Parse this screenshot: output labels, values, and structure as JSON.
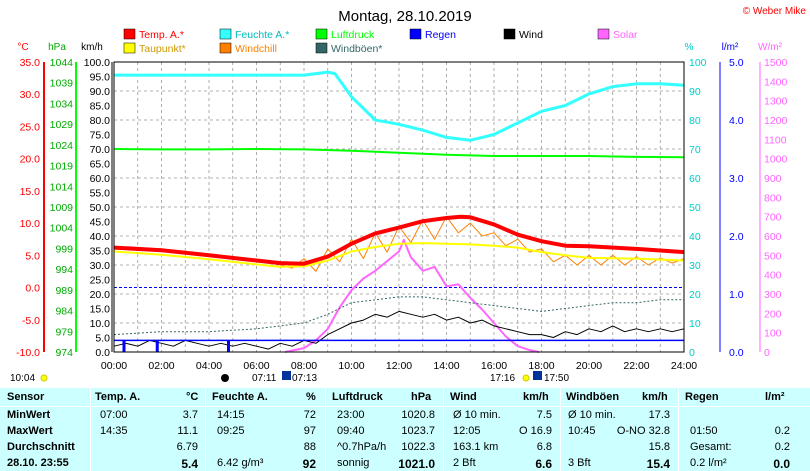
{
  "title": "Montag, 28.10.2019",
  "credit": "© Weber Mike",
  "legend": [
    {
      "label": "Temp. A.*",
      "color": "#ff0000"
    },
    {
      "label": "Feuchte A.*",
      "color": "#33ffff"
    },
    {
      "label": "Luftdruck",
      "color": "#00ff00"
    },
    {
      "label": "Regen",
      "color": "#0000ff"
    },
    {
      "label": "Wind",
      "color": "#000000"
    },
    {
      "label": "Solar",
      "color": "#ff66ff"
    },
    {
      "label": "Taupunkt*",
      "color": "#ffff00"
    },
    {
      "label": "Windchill",
      "color": "#ff8000"
    },
    {
      "label": "Windböen*",
      "color": "#336666"
    }
  ],
  "axis_units": {
    "temp": "°C",
    "press": "hPa",
    "wind": "km/h",
    "hum": "%",
    "rain": "l/m²",
    "solar": "W/m²"
  },
  "events": {
    "left_time": "10:04",
    "sunrise_a": "07:11",
    "sunrise_b": "07:13",
    "sunset_a": "17:16",
    "sunset_b": "17:50"
  },
  "chart_data": {
    "type": "line",
    "x_unit": "hours",
    "x_ticks": [
      "00:00",
      "02:00",
      "04:00",
      "06:00",
      "08:00",
      "10:00",
      "12:00",
      "14:00",
      "16:00",
      "18:00",
      "20:00",
      "22:00",
      "24:00"
    ],
    "axes": {
      "temp": {
        "min": -10,
        "max": 35,
        "ticks": [
          "35.0",
          "30.0",
          "25.0",
          "20.0",
          "15.0",
          "10.0",
          "5.0",
          "0.0",
          "-5.0",
          "-10.0"
        ]
      },
      "press": {
        "min": 974,
        "max": 1044,
        "ticks": [
          "1044",
          "1039",
          "1034",
          "1029",
          "1024",
          "1019",
          "1014",
          "1009",
          "1004",
          "999",
          "994",
          "989",
          "984",
          "979",
          "974"
        ]
      },
      "wind": {
        "min": 0,
        "max": 100,
        "ticks": [
          "100.0",
          "95.0",
          "90.0",
          "85.0",
          "80.0",
          "75.0",
          "70.0",
          "65.0",
          "60.0",
          "55.0",
          "50.0",
          "45.0",
          "40.0",
          "35.0",
          "30.0",
          "25.0",
          "20.0",
          "15.0",
          "10.0",
          "5.0",
          "0.0"
        ]
      },
      "hum": {
        "min": 0,
        "max": 100,
        "ticks": [
          "100",
          "90",
          "80",
          "70",
          "60",
          "50",
          "40",
          "30",
          "20",
          "10",
          "0"
        ]
      },
      "rain": {
        "min": 0,
        "max": 5,
        "ticks": [
          "5.0",
          "4.0",
          "3.0",
          "2.0",
          "1.0",
          "0.0"
        ]
      },
      "solar": {
        "min": 0,
        "max": 1500,
        "ticks": [
          "1500",
          "1400",
          "1300",
          "1200",
          "1100",
          "1000",
          "900",
          "800",
          "700",
          "600",
          "500",
          "400",
          "300",
          "200",
          "100",
          "0"
        ]
      }
    },
    "series": [
      {
        "name": "Temp. A.*",
        "axis": "temp",
        "color": "#ff0000",
        "width": 4,
        "x": [
          0,
          2,
          4,
          6,
          7,
          8,
          9,
          10,
          11,
          12,
          13,
          14,
          14.6,
          15,
          16,
          17,
          18,
          19,
          20,
          22,
          24
        ],
        "y": [
          6.2,
          5.8,
          5.0,
          4.2,
          3.8,
          3.7,
          4.8,
          6.8,
          8.4,
          9.3,
          10.3,
          10.8,
          11.0,
          10.9,
          9.8,
          8.2,
          7.2,
          6.5,
          6.4,
          6.0,
          5.5
        ]
      },
      {
        "name": "Taupunkt*",
        "axis": "temp",
        "color": "#ffff00",
        "width": 2,
        "x": [
          0,
          2,
          4,
          6,
          7,
          8,
          9,
          10,
          11,
          12,
          13,
          14,
          15,
          16,
          17,
          18,
          19,
          20,
          22,
          24
        ],
        "y": [
          5.6,
          5.1,
          4.4,
          3.6,
          3.2,
          3.3,
          4.2,
          5.6,
          6.3,
          6.8,
          6.9,
          6.8,
          6.7,
          6.5,
          6.2,
          5.5,
          5.0,
          4.6,
          4.5,
          4.2
        ]
      },
      {
        "name": "Feuchte A.*",
        "axis": "hum",
        "color": "#33ffff",
        "width": 3,
        "x": [
          0,
          2,
          4,
          6,
          8,
          9,
          9.3,
          10,
          11,
          12,
          13,
          14,
          15,
          16,
          17,
          18,
          19,
          20,
          21,
          22,
          23,
          24
        ],
        "y": [
          95.5,
          95.5,
          95.5,
          95.5,
          95.5,
          96.5,
          96,
          88,
          80,
          78.5,
          76.5,
          74,
          73,
          75,
          79,
          83,
          85,
          89,
          91.5,
          92.5,
          92.5,
          92
        ]
      },
      {
        "name": "Luftdruck",
        "axis": "press",
        "color": "#00ff00",
        "width": 2,
        "x": [
          0,
          2,
          4,
          6,
          8,
          10,
          12,
          14,
          16,
          18,
          20,
          22,
          24
        ],
        "y": [
          1023.0,
          1022.9,
          1022.9,
          1023.0,
          1022.9,
          1022.6,
          1022.1,
          1021.6,
          1021.3,
          1021.3,
          1021.3,
          1021.1,
          1021.0
        ]
      },
      {
        "name": "Regen",
        "axis": "rain",
        "color": "#0000ff",
        "width": 1.5,
        "x": [
          0,
          24
        ],
        "y": [
          0.2,
          0.2
        ]
      },
      {
        "name": "Windböen*",
        "axis": "wind",
        "color": "#336666",
        "width": 1,
        "dash": "2,2",
        "x": [
          0,
          2,
          4,
          6,
          8,
          9,
          10,
          11,
          12,
          13,
          14,
          15,
          16,
          17,
          18,
          19,
          20,
          21,
          22,
          23,
          24
        ],
        "y": [
          6,
          7,
          7,
          8,
          10,
          13,
          17,
          18,
          19,
          19,
          18,
          17,
          16,
          15,
          14,
          15,
          16,
          17,
          17,
          18,
          18
        ]
      },
      {
        "name": "Windchill",
        "axis": "temp",
        "color": "#ff8000",
        "width": 1,
        "x": [
          7,
          7.5,
          8,
          8.5,
          9,
          9.5,
          10,
          10.5,
          11,
          11.5,
          12,
          12.5,
          13,
          13.5,
          14,
          14.5,
          15,
          15.5,
          16,
          16.5,
          17,
          17.5,
          18,
          18.5,
          19,
          19.5,
          20,
          20.5,
          21,
          21.5,
          22,
          22.5,
          23,
          23.5,
          24
        ],
        "y": [
          3.5,
          3.0,
          4.5,
          2.5,
          6.0,
          4.0,
          7.5,
          4.5,
          8.5,
          5.5,
          9.5,
          7.0,
          10.5,
          7.5,
          11.0,
          8.5,
          10.0,
          8.0,
          8.5,
          6.5,
          7.5,
          5.5,
          6.0,
          4.0,
          5.0,
          3.5,
          5.0,
          3.5,
          5.0,
          3.5,
          4.8,
          3.5,
          4.6,
          3.8,
          4.5
        ]
      },
      {
        "name": "Wind",
        "axis": "wind",
        "color": "#000000",
        "width": 1,
        "x": [
          0,
          0.5,
          1,
          1.5,
          2,
          2.5,
          3,
          3.5,
          4,
          4.5,
          5,
          5.5,
          6,
          6.5,
          7,
          7.5,
          8,
          8.5,
          9,
          9.5,
          10,
          10.5,
          11,
          11.5,
          12,
          12.5,
          13,
          13.5,
          14,
          14.5,
          15,
          15.5,
          16,
          16.5,
          17,
          17.5,
          18,
          18.5,
          19,
          19.5,
          20,
          20.5,
          21,
          21.5,
          22,
          22.5,
          23,
          23.5,
          24
        ],
        "y": [
          2,
          3,
          2,
          4,
          3,
          2,
          4,
          3,
          2,
          3,
          2,
          3,
          2,
          1,
          3,
          2,
          4,
          3,
          6,
          8,
          10,
          11,
          13,
          12,
          14,
          13,
          12,
          13,
          11,
          12,
          10,
          11,
          9,
          8,
          7,
          6,
          6,
          5,
          7,
          6,
          8,
          7,
          9,
          7,
          8,
          7,
          8,
          7,
          8
        ]
      },
      {
        "name": "Solar",
        "axis": "solar",
        "color": "#ff66ff",
        "width": 2,
        "x": [
          7.2,
          8,
          8.5,
          9,
          9.5,
          10,
          10.5,
          11,
          11.5,
          12,
          12.2,
          12.5,
          13,
          13.5,
          14,
          14.5,
          15,
          15.5,
          16,
          16.5,
          17,
          17.5,
          17.9
        ],
        "y": [
          0,
          20,
          60,
          120,
          230,
          320,
          380,
          420,
          470,
          520,
          580,
          490,
          420,
          440,
          340,
          350,
          280,
          220,
          150,
          80,
          30,
          10,
          0
        ]
      }
    ]
  },
  "table": {
    "headers": {
      "sensor": "Sensor",
      "temp": "Temp. A.",
      "temp_unit": "°C",
      "hum": "Feuchte A.",
      "hum_unit": "%",
      "press": "Luftdruck",
      "press_unit": "hPa",
      "wind": "Wind",
      "wind_unit": "km/h",
      "gust": "Windböen",
      "gust_unit": "km/h",
      "rain": "Regen",
      "rain_unit": "l/m²"
    },
    "rows": [
      {
        "label": "MinWert",
        "temp_time": "07:00",
        "temp_val": "3.7",
        "hum_time": "14:15",
        "hum_val": "72",
        "press_time": "23:00",
        "press_val": "1020.8",
        "wind_time": "Ø 10 min.",
        "wind_val": "7.5",
        "gust_time": "Ø 10 min.",
        "gust_val": "17.3",
        "rain_time": "",
        "rain_val": ""
      },
      {
        "label": "MaxWert",
        "temp_time": "14:35",
        "temp_val": "11.1",
        "hum_time": "09:25",
        "hum_val": "97",
        "press_time": "09:40",
        "press_val": "1023.7",
        "wind_time": "12:05",
        "wind_val": "O 16.9",
        "gust_time": "10:45",
        "gust_val": "O-NO 32.8",
        "rain_time": "01:50",
        "rain_val": "0.2"
      },
      {
        "label": "Durchschnitt",
        "temp_time": "",
        "temp_val": "6.79",
        "hum_time": "",
        "hum_val": "88",
        "press_time": "^0.7hPa/h",
        "press_val": "1022.3",
        "wind_time": "163.1 km",
        "wind_val": "6.8",
        "gust_time": "",
        "gust_val": "15.8",
        "rain_time": "Gesamt:",
        "rain_val": "0.2"
      },
      {
        "label": "28.10. 23:55",
        "temp_time": "",
        "temp_val": "5.4",
        "hum_time": "6.42 g/m³",
        "hum_val": "92",
        "press_time": "sonnig",
        "press_val": "1021.0",
        "wind_time": "2 Bft",
        "wind_val": "6.6",
        "gust_time": "3 Bft",
        "gust_val": "15.4",
        "rain_time": "0.2 l/m²",
        "rain_val": "0.0"
      }
    ]
  }
}
